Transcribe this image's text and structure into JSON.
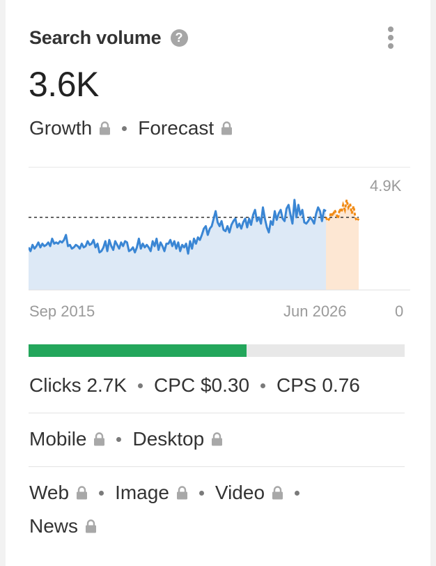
{
  "card": {
    "title": "Search volume",
    "help_glyph": "?",
    "value": "3.6K",
    "growth_label": "Growth",
    "forecast_label": "Forecast"
  },
  "chart_data": {
    "type": "area",
    "x_start_label": "Sep 2015",
    "x_end_label": "Jun 2026",
    "y_max_label": "4.9K",
    "y_min_label": "0",
    "ylim": [
      0,
      4900
    ],
    "average_line": 2900,
    "series": [
      {
        "values": [
          1700,
          1550,
          1800,
          1650,
          1750,
          1900,
          1700,
          1850,
          1750,
          1800,
          1900,
          1750,
          2050,
          1850,
          1900,
          1850,
          1950,
          1900,
          2000,
          2200,
          1750,
          1800,
          1650,
          1700,
          1800,
          1750,
          1650,
          1850,
          1700,
          1750,
          1950,
          1800,
          1850,
          2000,
          1700,
          1850,
          1500,
          1550,
          1700,
          1950,
          1550,
          2000,
          1750,
          1600,
          1950,
          1800,
          1650,
          1900,
          1750,
          1950,
          1900,
          1550,
          1600,
          1700,
          1500,
          1700,
          2050,
          1650,
          1850,
          1700,
          1800,
          1700,
          1550,
          1950,
          1750,
          2050,
          1600,
          1900,
          1750,
          1550,
          1850,
          1850,
          2000,
          1750,
          1950,
          1650,
          1900,
          1550,
          1800,
          1700,
          1850,
          1450,
          1950,
          1650,
          2050,
          1850,
          2100,
          2000,
          2200,
          2450,
          2550,
          2200,
          2450,
          2550,
          2850,
          3150,
          2700,
          2550,
          2750,
          2400,
          2350,
          2550,
          2300,
          2600,
          2750,
          2850,
          2500,
          2650,
          2450,
          2700,
          2850,
          2500,
          2850,
          2600,
          3000,
          3200,
          2750,
          2900,
          2650,
          3300,
          2850,
          2500,
          2300,
          2750,
          2600,
          3150,
          2800,
          3050,
          3200,
          2850,
          2750,
          3250,
          3400,
          3000,
          2650,
          3600,
          2900,
          3400,
          3000,
          3200,
          2700,
          2650,
          2750,
          2900,
          2800,
          2650,
          3050,
          3300,
          3150,
          2750,
          3200,
          3150
        ]
      },
      {
        "name": "Forecast",
        "values": [
          2900,
          2750,
          2850,
          3100,
          2950,
          3200,
          3050,
          2850,
          3250,
          3100,
          3400,
          3200,
          3600,
          3300,
          3450,
          3050,
          3350,
          2900,
          2750,
          2850
        ]
      }
    ]
  },
  "progress": {
    "value": 0.58
  },
  "metrics": {
    "clicks": "Clicks 2.7K",
    "cpc": "CPC $0.30",
    "cps": "CPS 0.76"
  },
  "devices": {
    "mobile": "Mobile",
    "desktop": "Desktop"
  },
  "types": {
    "web": "Web",
    "image": "Image",
    "video": "Video",
    "news": "News"
  },
  "colors": {
    "line": "#3a86d4",
    "area": "#dde9f6",
    "forecast_line": "#f08a14",
    "forecast_area": "#fde7d3",
    "progress": "#23a65b"
  },
  "icons": {
    "lock": "lock-icon",
    "help": "help-icon",
    "menu": "kebab-menu-icon"
  }
}
